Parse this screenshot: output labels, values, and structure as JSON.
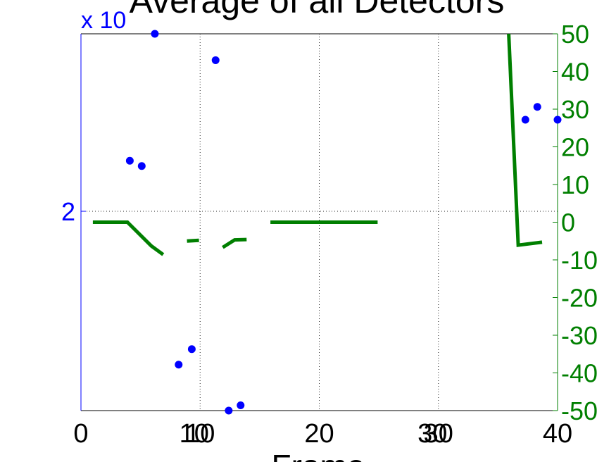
{
  "chart_data": {
    "type": "scatter",
    "title": "Average of all Detectors",
    "xlabel": "Frame",
    "xlim": [
      0,
      40
    ],
    "xticks": [
      {
        "value": 0,
        "label": "0"
      },
      {
        "value": 9.5,
        "label": "10"
      },
      {
        "value": 10,
        "label": "10"
      },
      {
        "value": 20,
        "label": "20"
      },
      {
        "value": 29.5,
        "label": "30"
      },
      {
        "value": 30,
        "label": "30"
      },
      {
        "value": 40,
        "label": "40"
      }
    ],
    "grid": true,
    "left_axis": {
      "color": "#0000FF",
      "multiplier_label": "x 10",
      "ticks": [
        {
          "value": 2,
          "label": "2"
        }
      ]
    },
    "right_axis": {
      "color": "#007F00",
      "ylim": [
        -50,
        50
      ],
      "ticks": [
        -50,
        -40,
        -30,
        -20,
        -10,
        0,
        10,
        20,
        30,
        40,
        50
      ]
    },
    "series": [
      {
        "axis": "left",
        "style": "markers",
        "color": "#0000FF",
        "scale_note": "values shown on right-axis scale",
        "points": [
          [
            6.2,
            50.0
          ],
          [
            11.3,
            43.0
          ],
          [
            4.1,
            16.3
          ],
          [
            5.1,
            14.9
          ],
          [
            9.3,
            -33.7
          ],
          [
            8.2,
            -37.8
          ],
          [
            12.4,
            -50.0
          ],
          [
            13.4,
            -48.6
          ],
          [
            37.3,
            27.2
          ],
          [
            38.3,
            30.6
          ],
          [
            40.0,
            27.2
          ]
        ]
      },
      {
        "axis": "right",
        "style": "line",
        "color": "#007F00",
        "segments": [
          [
            [
              1.0,
              0.0
            ],
            [
              3.9,
              0.0
            ],
            [
              5.9,
              -6.3
            ],
            [
              6.9,
              -8.6
            ]
          ],
          [
            [
              8.9,
              -5.0
            ],
            [
              9.9,
              -4.8
            ]
          ],
          [
            [
              11.9,
              -6.7
            ],
            [
              12.9,
              -4.7
            ],
            [
              13.9,
              -4.6
            ]
          ],
          [
            [
              15.9,
              0.0
            ],
            [
              24.9,
              0.0
            ]
          ],
          [
            [
              35.9,
              50.0
            ],
            [
              36.7,
              -6.1
            ],
            [
              38.7,
              -5.3
            ]
          ]
        ]
      }
    ]
  }
}
